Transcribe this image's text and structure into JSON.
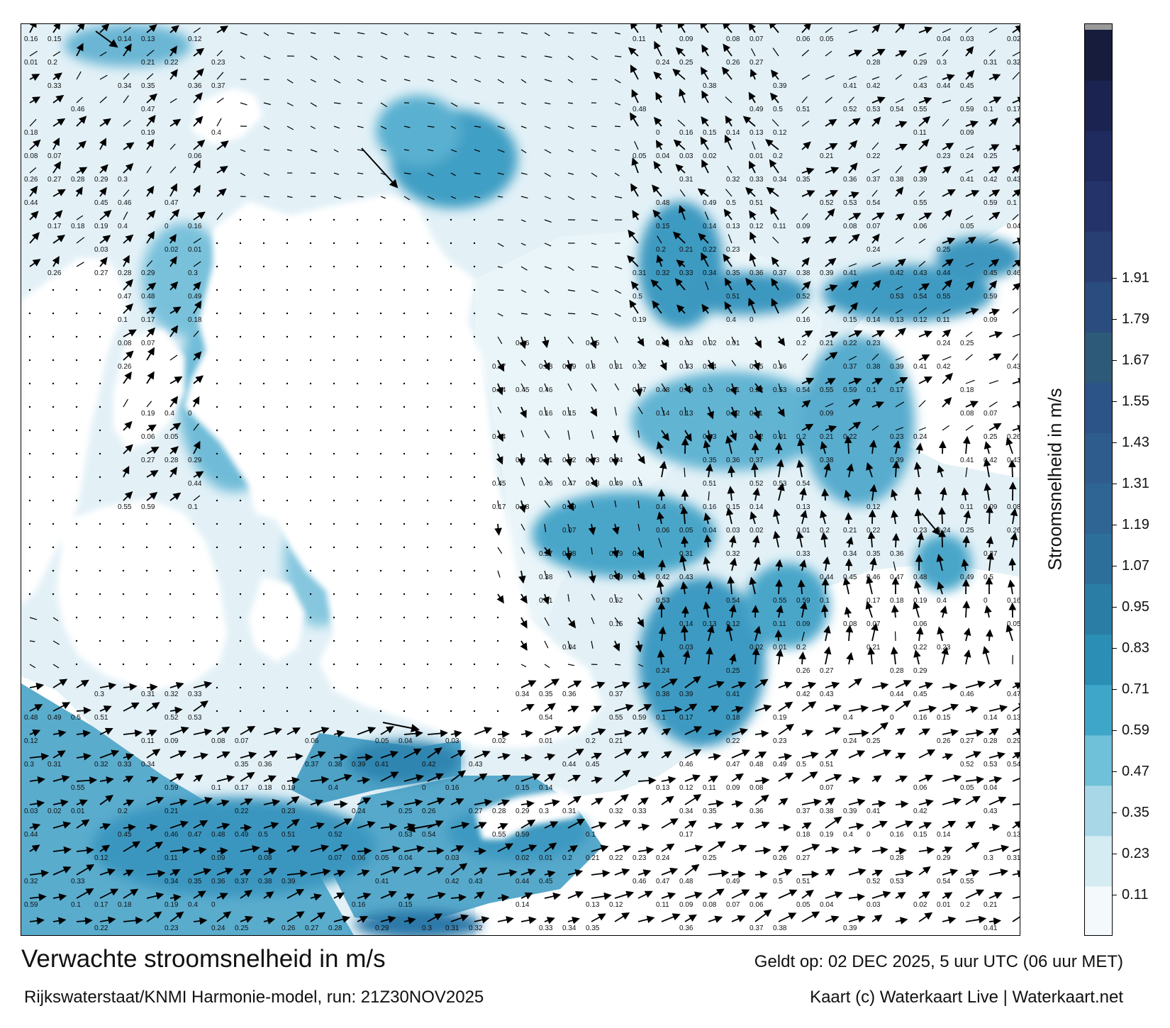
{
  "map": {
    "title": "Verwachte stroomsnelheid in m/s",
    "subtitle": "Rijkswaterstaat/KNMI Harmonie-model, run: 21Z30NOV2025",
    "valid_time": "Geldt op: 02 DEC 2025, 5 uur UTC (06 uur MET)",
    "credits": "Kaart (c) Waterkaart Live | Waterkaart.net"
  },
  "colorbar": {
    "title": "Stroomsnelheid in m/s",
    "ticks": [
      "0.11",
      "0.23",
      "0.35",
      "0.47",
      "0.59",
      "0.71",
      "0.83",
      "0.95",
      "1.07",
      "1.19",
      "1.31",
      "1.43",
      "1.55",
      "1.67",
      "1.79",
      "1.91"
    ],
    "colors": [
      "#f4fafc",
      "#d6ecf3",
      "#a8d8e8",
      "#6fc0d9",
      "#3ea6c8",
      "#2b8fb5",
      "#2a7ea6",
      "#2d6f9b",
      "#2f6594",
      "#2e5c8c",
      "#2c5488",
      "#2d5a78",
      "#2a4c7e",
      "#283f74",
      "#24336a",
      "#1f2a5e",
      "#1b2350",
      "#171c3c"
    ],
    "top_color": "#9a9a9a"
  },
  "sample_labels": [
    {
      "t": "0.16"
    },
    {
      "t": "0.15"
    },
    {
      "t": "0.14"
    },
    {
      "t": "0.13"
    },
    {
      "t": "0.12"
    },
    {
      "t": "0.11"
    },
    {
      "t": "0.09"
    },
    {
      "t": "0.08"
    },
    {
      "t": "0.07"
    },
    {
      "t": "0.06"
    },
    {
      "t": "0.05"
    },
    {
      "t": "0.04"
    },
    {
      "t": "0.03"
    },
    {
      "t": "0.02"
    },
    {
      "t": "0.01"
    },
    {
      "t": "0.2"
    },
    {
      "t": "0.21"
    },
    {
      "t": "0.22"
    },
    {
      "t": "0.23"
    },
    {
      "t": "0.24"
    },
    {
      "t": "0.25"
    },
    {
      "t": "0.26"
    },
    {
      "t": "0.27"
    },
    {
      "t": "0.28"
    },
    {
      "t": "0.29"
    },
    {
      "t": "0.3"
    },
    {
      "t": "0.31"
    },
    {
      "t": "0.32"
    },
    {
      "t": "0.33"
    },
    {
      "t": "0.34"
    },
    {
      "t": "0.35"
    },
    {
      "t": "0.36"
    },
    {
      "t": "0.37"
    },
    {
      "t": "0.38"
    },
    {
      "t": "0.39"
    },
    {
      "t": "0.41"
    },
    {
      "t": "0.42"
    },
    {
      "t": "0.43"
    },
    {
      "t": "0.44"
    },
    {
      "t": "0.45"
    },
    {
      "t": "0.46"
    },
    {
      "t": "0.47"
    },
    {
      "t": "0.48"
    },
    {
      "t": "0.49"
    },
    {
      "t": "0.5"
    },
    {
      "t": "0.51"
    },
    {
      "t": "0.52"
    },
    {
      "t": "0.53"
    },
    {
      "t": "0.54"
    },
    {
      "t": "0.55"
    },
    {
      "t": "0.59"
    },
    {
      "t": "0.1"
    },
    {
      "t": "0.17"
    },
    {
      "t": "0.18"
    },
    {
      "t": "0.19"
    },
    {
      "t": "0.4"
    },
    {
      "t": "0"
    }
  ]
}
